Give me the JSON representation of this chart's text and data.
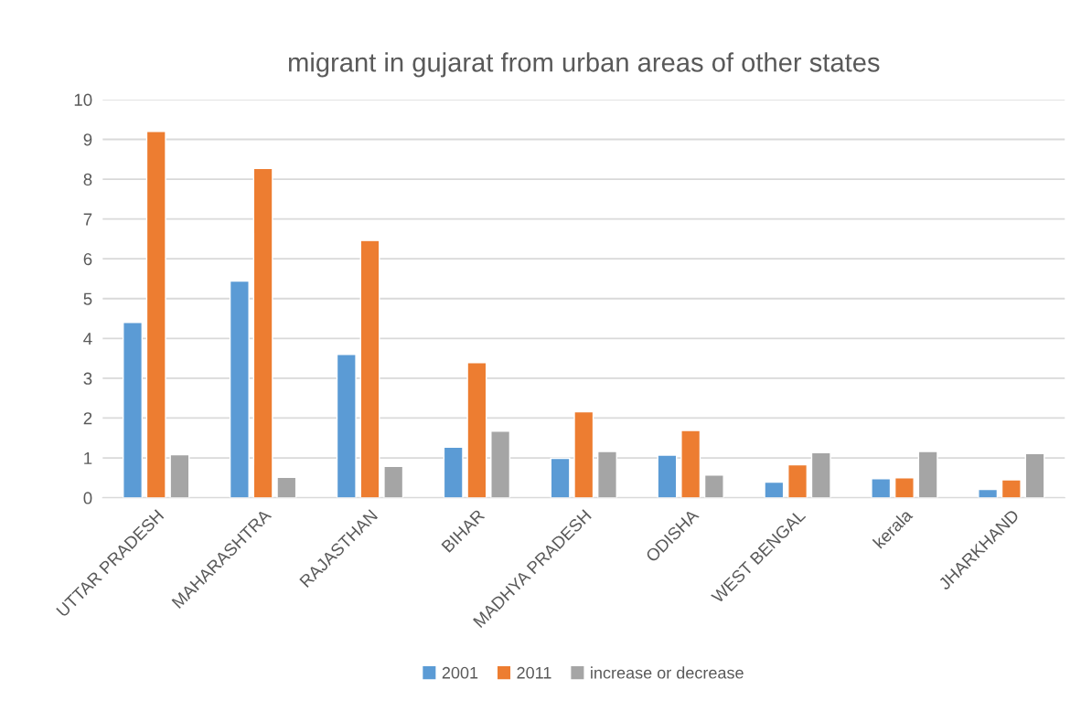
{
  "chart_data": {
    "type": "bar",
    "title": "migrant in gujarat from urban areas of other states",
    "categories": [
      "UTTAR PRADESH",
      "MAHARASHTRA",
      "RAJASTHAN",
      "BIHAR",
      "MADHYA PRADESH",
      "ODISHA",
      "WEST BENGAL",
      "kerala",
      "JHARKHAND"
    ],
    "series": [
      {
        "name": "2001",
        "color": "#5b9bd5",
        "values": [
          4.4,
          5.44,
          3.6,
          1.27,
          0.99,
          1.07,
          0.39,
          0.48,
          0.21
        ]
      },
      {
        "name": "2011",
        "color": "#ed7d31",
        "values": [
          9.2,
          8.27,
          6.46,
          3.39,
          2.16,
          1.69,
          0.83,
          0.5,
          0.45
        ]
      },
      {
        "name": "increase or decrease",
        "color": "#a5a5a5",
        "values": [
          1.08,
          0.51,
          0.79,
          1.67,
          1.16,
          0.57,
          1.13,
          1.16,
          1.11
        ]
      }
    ],
    "ylim": [
      0,
      10
    ],
    "yticks": [
      0,
      1,
      2,
      3,
      4,
      5,
      6,
      7,
      8,
      9,
      10
    ],
    "grid": "y",
    "legend": "bottom"
  }
}
